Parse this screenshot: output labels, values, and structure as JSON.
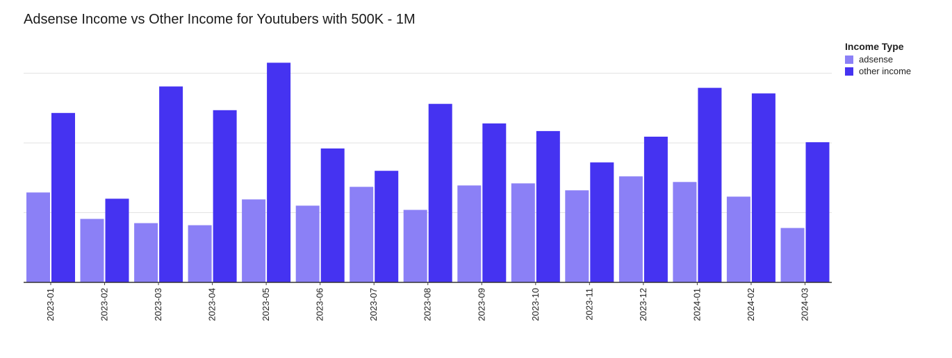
{
  "chart_data": {
    "type": "bar",
    "title": "Adsense Income vs Other Income for Youtubers with 500K - 1M",
    "xlabel": "",
    "ylabel": "",
    "ylim": [
      0,
      3
    ],
    "grid": true,
    "legend_title": "Income Type",
    "legend_position": "top-right",
    "categories": [
      "2023-01",
      "2023-02",
      "2023-03",
      "2023-04",
      "2023-05",
      "2023-06",
      "2023-07",
      "2023-08",
      "2023-09",
      "2023-10",
      "2023-11",
      "2023-12",
      "2024-01",
      "2024-02",
      "2024-03"
    ],
    "series": [
      {
        "name": "adsense",
        "color": "#8b80f6",
        "values": [
          1.29,
          0.91,
          0.85,
          0.82,
          1.19,
          1.1,
          1.37,
          1.04,
          1.39,
          1.42,
          1.32,
          1.52,
          1.44,
          1.23,
          0.78
        ]
      },
      {
        "name": "other income",
        "color": "#4533f1",
        "values": [
          2.43,
          1.2,
          2.81,
          2.47,
          3.15,
          1.92,
          1.6,
          2.56,
          2.28,
          2.17,
          1.72,
          2.09,
          2.79,
          2.71,
          2.01
        ]
      }
    ]
  }
}
